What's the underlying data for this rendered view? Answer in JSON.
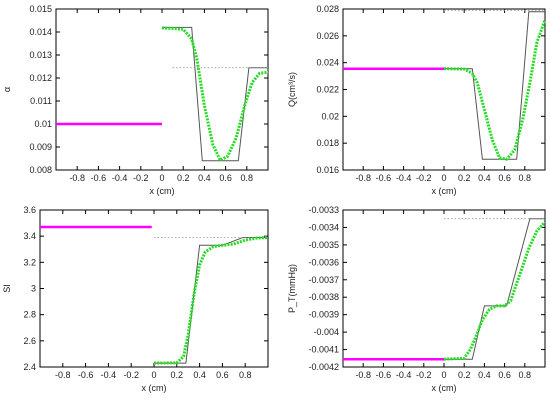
{
  "chart_data": [
    {
      "type": "line",
      "ylabel": "α",
      "xlabel": "x (cm)",
      "xlim": [
        -1,
        1
      ],
      "ylim": [
        0.008,
        0.015
      ],
      "xticks": [
        -0.8,
        -0.6,
        -0.4,
        -0.2,
        0,
        0.2,
        0.4,
        0.6,
        0.8
      ],
      "yticks": [
        0.008,
        0.009,
        0.01,
        0.011,
        0.012,
        0.013,
        0.014,
        0.015
      ],
      "xtick_labels": [
        "-0.8",
        "-0.6",
        "-0.4",
        "-0.2",
        "0",
        "0.2",
        "0.4",
        "0.6",
        "0.8"
      ],
      "ytick_labels": [
        "0.008",
        "0.009",
        "0.01",
        "0.011",
        "0.012",
        "0.013",
        "0.014",
        "0.015"
      ],
      "grid": false,
      "series": [
        {
          "color": "#ff00ff",
          "style": "solid-thick",
          "x": [
            -1.0,
            0.0
          ],
          "y": [
            0.01,
            0.01
          ]
        },
        {
          "color": "#555555",
          "style": "solid-thin",
          "x": [
            0.0,
            0.28,
            0.38,
            0.72,
            0.82,
            1.0
          ],
          "y": [
            0.0142,
            0.0142,
            0.0084,
            0.0084,
            0.01245,
            0.01245
          ]
        },
        {
          "color": "#999999",
          "style": "dotted",
          "x": [
            0.1,
            1.0
          ],
          "y": [
            0.01245,
            0.01245
          ]
        },
        {
          "color": "#22dd22",
          "style": "dotted-thick",
          "x": [
            0.0,
            0.2,
            0.28,
            0.33,
            0.4,
            0.48,
            0.55,
            0.62,
            0.7,
            0.78,
            0.85,
            0.92,
            1.0
          ],
          "y": [
            0.01418,
            0.01412,
            0.0137,
            0.0128,
            0.0108,
            0.0091,
            0.00842,
            0.0086,
            0.0094,
            0.0108,
            0.0118,
            0.0122,
            0.01225
          ]
        }
      ]
    },
    {
      "type": "line",
      "ylabel": "Q(cm³/s)",
      "xlabel": "x (cm)",
      "xlim": [
        -1,
        1
      ],
      "ylim": [
        0.016,
        0.028
      ],
      "xticks": [
        -0.8,
        -0.6,
        -0.4,
        -0.2,
        0,
        0.2,
        0.4,
        0.6,
        0.8
      ],
      "yticks": [
        0.016,
        0.018,
        0.02,
        0.022,
        0.024,
        0.026,
        0.028
      ],
      "xtick_labels": [
        "-0.8",
        "-0.6",
        "-0.4",
        "-0.2",
        "0",
        "0.2",
        "0.4",
        "0.6",
        "0.8"
      ],
      "ytick_labels": [
        "0.016",
        "0.018",
        "0.02",
        "0.022",
        "0.024",
        "0.026",
        "0.028"
      ],
      "grid": false,
      "series": [
        {
          "color": "#ff00ff",
          "style": "solid-thick",
          "x": [
            -1.0,
            0.0
          ],
          "y": [
            0.02355,
            0.02355
          ]
        },
        {
          "color": "#555555",
          "style": "solid-thin",
          "x": [
            0.0,
            0.28,
            0.38,
            0.72,
            0.84,
            1.0
          ],
          "y": [
            0.02355,
            0.02355,
            0.0168,
            0.0168,
            0.0278,
            0.0278
          ]
        },
        {
          "color": "#999999",
          "style": "dotted",
          "x": [
            0.0,
            1.0
          ],
          "y": [
            0.0279,
            0.0279
          ]
        },
        {
          "color": "#22dd22",
          "style": "dotted-thick",
          "x": [
            0.0,
            0.2,
            0.28,
            0.33,
            0.4,
            0.48,
            0.55,
            0.62,
            0.7,
            0.78,
            0.85,
            0.92,
            1.0
          ],
          "y": [
            0.02355,
            0.02352,
            0.0232,
            0.0225,
            0.0205,
            0.0182,
            0.0169,
            0.0168,
            0.0175,
            0.0198,
            0.0225,
            0.0255,
            0.0272
          ]
        }
      ]
    },
    {
      "type": "line",
      "ylabel": "SI",
      "xlabel": "x (cm)",
      "xlim": [
        -1,
        1
      ],
      "ylim": [
        2.4,
        3.6
      ],
      "xticks": [
        -0.8,
        -0.6,
        -0.4,
        -0.2,
        0,
        0.2,
        0.4,
        0.6,
        0.8
      ],
      "yticks": [
        2.4,
        2.6,
        2.8,
        3.0,
        3.2,
        3.4,
        3.6
      ],
      "xtick_labels": [
        "-0.8",
        "-0.6",
        "-0.4",
        "-0.2",
        "0",
        "0.2",
        "0.4",
        "0.6",
        "0.8"
      ],
      "ytick_labels": [
        "2.4",
        "2.6",
        "2.8",
        "3",
        "3.2",
        "3.4",
        "3.6"
      ],
      "grid": false,
      "series": [
        {
          "color": "#ff00ff",
          "style": "solid-thick",
          "x": [
            -1.0,
            -0.02
          ],
          "y": [
            3.47,
            3.47
          ]
        },
        {
          "color": "#555555",
          "style": "solid-thin",
          "x": [
            0.0,
            0.28,
            0.4,
            0.6,
            0.78,
            1.0
          ],
          "y": [
            2.43,
            2.43,
            3.33,
            3.33,
            3.39,
            3.39
          ]
        },
        {
          "color": "#999999",
          "style": "dotted",
          "x": [
            0.0,
            1.0
          ],
          "y": [
            3.39,
            3.39
          ]
        },
        {
          "color": "#22dd22",
          "style": "dotted-thick",
          "x": [
            0.0,
            0.2,
            0.26,
            0.3,
            0.35,
            0.4,
            0.45,
            0.52,
            0.6,
            0.7,
            0.8,
            0.9,
            1.0
          ],
          "y": [
            2.43,
            2.432,
            2.48,
            2.65,
            2.95,
            3.18,
            3.28,
            3.32,
            3.33,
            3.34,
            3.37,
            3.385,
            3.39
          ]
        }
      ]
    },
    {
      "type": "line",
      "ylabel": "P_T(mmHg)",
      "xlabel": "x (cm)",
      "xlim": [
        -1,
        1
      ],
      "ylim": [
        -0.0042,
        -0.0033
      ],
      "xticks": [
        -0.8,
        -0.6,
        -0.4,
        -0.2,
        0,
        0.2,
        0.4,
        0.6,
        0.8
      ],
      "yticks": [
        -0.0042,
        -0.0041,
        -0.004,
        -0.0039,
        -0.0038,
        -0.0037,
        -0.0036,
        -0.0035,
        -0.0034,
        -0.0033
      ],
      "xtick_labels": [
        "-0.8",
        "-0.6",
        "-0.4",
        "-0.2",
        "0",
        "0.2",
        "0.4",
        "0.6",
        "0.8"
      ],
      "ytick_labels": [
        "-0.0042",
        "-0.0041",
        "-0.004",
        "-0.0039",
        "-0.0038",
        "-0.0037",
        "-0.0036",
        "-0.0035",
        "-0.0034",
        "-0.0033"
      ],
      "grid": false,
      "series": [
        {
          "color": "#ff00ff",
          "style": "solid-thick",
          "x": [
            -1.0,
            0.0
          ],
          "y": [
            -0.004155,
            -0.004155
          ]
        },
        {
          "color": "#555555",
          "style": "solid-thin",
          "x": [
            0.0,
            0.28,
            0.4,
            0.62,
            0.85,
            1.0
          ],
          "y": [
            -0.004155,
            -0.004155,
            -0.00385,
            -0.00385,
            -0.00335,
            -0.00335
          ]
        },
        {
          "color": "#999999",
          "style": "dotted",
          "x": [
            0.0,
            1.0
          ],
          "y": [
            -0.00335,
            -0.00335
          ]
        },
        {
          "color": "#22dd22",
          "style": "dotted-thick",
          "x": [
            0.0,
            0.2,
            0.26,
            0.32,
            0.38,
            0.45,
            0.52,
            0.6,
            0.66,
            0.72,
            0.78,
            0.84,
            0.92,
            1.0
          ],
          "y": [
            -0.004155,
            -0.00415,
            -0.0041,
            -0.00402,
            -0.00393,
            -0.00387,
            -0.00385,
            -0.00385,
            -0.00382,
            -0.00372,
            -0.00362,
            -0.00352,
            -0.00342,
            -0.00337
          ]
        }
      ]
    }
  ]
}
